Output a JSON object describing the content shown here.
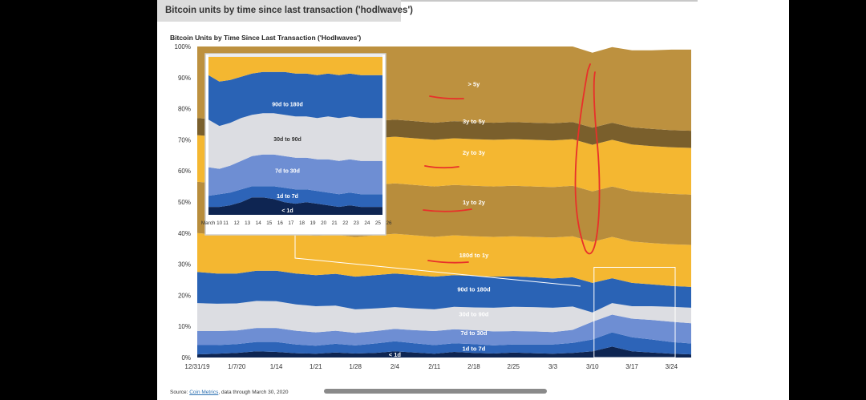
{
  "header": {
    "title": "Bitcoin units by time since last transaction ('hodlwaves')"
  },
  "chart_data": {
    "type": "area",
    "title": "Bitcoin Units by Time Since Last Transaction ('Hodlwaves')",
    "stacking": "percent",
    "ylim": [
      0,
      100
    ],
    "y_ticks": [
      "0%",
      "10%",
      "20%",
      "30%",
      "40%",
      "50%",
      "60%",
      "70%",
      "80%",
      "90%",
      "100%"
    ],
    "x_ticks": [
      "12/31/19",
      "1/7/20",
      "1/14",
      "1/21",
      "1/28",
      "2/4",
      "2/11",
      "2/18",
      "2/25",
      "3/3",
      "3/10",
      "3/17",
      "3/24"
    ],
    "grid": false,
    "x": [
      "12/31/19",
      "1/4",
      "1/7/20",
      "1/11",
      "1/14",
      "1/18",
      "1/21",
      "1/25",
      "1/28",
      "2/1",
      "2/4",
      "2/8",
      "2/11",
      "2/15",
      "2/18",
      "2/22",
      "2/25",
      "2/29",
      "3/3",
      "3/7",
      "3/10",
      "3/14",
      "3/17",
      "3/21",
      "3/24",
      "3/28"
    ],
    "series": [
      {
        "name": "< 1d",
        "color": "#0e2552",
        "label_x": "2/4",
        "label_y": 1,
        "values": [
          1.0,
          1.2,
          1.5,
          2.0,
          1.8,
          1.4,
          1.2,
          1.6,
          1.3,
          1.5,
          2.0,
          1.6,
          1.2,
          1.8,
          1.5,
          1.3,
          1.6,
          1.4,
          1.2,
          1.5,
          2.0,
          3.5,
          2.0,
          1.6,
          1.2,
          1.0
        ]
      },
      {
        "name": "1d to 7d",
        "color": "#2d64b8",
        "label_x": "2/18",
        "label_y": 3,
        "values": [
          3.0,
          2.8,
          2.8,
          3.0,
          3.2,
          2.8,
          2.6,
          2.8,
          2.6,
          3.0,
          3.2,
          3.0,
          2.8,
          2.8,
          2.8,
          2.6,
          2.6,
          2.8,
          3.0,
          3.2,
          3.8,
          4.6,
          4.5,
          4.2,
          3.8,
          3.5
        ]
      },
      {
        "name": "7d to 30d",
        "color": "#6e8ed3",
        "label_x": "2/18",
        "label_y": 8,
        "values": [
          4.5,
          4.5,
          4.4,
          4.5,
          4.5,
          4.4,
          4.3,
          4.2,
          4.0,
          4.0,
          4.0,
          4.2,
          4.5,
          4.5,
          4.5,
          4.5,
          4.3,
          4.2,
          4.0,
          4.2,
          5.7,
          5.7,
          6.0,
          6.3,
          6.5,
          6.5
        ]
      },
      {
        "name": "30d to 90d",
        "color": "#dcdde2",
        "label_x": "2/18",
        "label_y": 14,
        "values": [
          9.0,
          8.8,
          8.7,
          8.7,
          8.6,
          8.5,
          8.4,
          8.1,
          7.6,
          7.3,
          7.0,
          7.0,
          7.0,
          7.2,
          7.3,
          7.6,
          7.8,
          7.8,
          7.8,
          7.5,
          3.0,
          3.7,
          4.0,
          4.4,
          4.8,
          5.0
        ]
      },
      {
        "name": "90d to 180d",
        "color": "#2a63b5",
        "label_x": "2/18",
        "label_y": 22,
        "values": [
          10.0,
          9.7,
          9.6,
          9.7,
          9.8,
          9.9,
          10.0,
          10.2,
          10.5,
          10.7,
          10.8,
          10.7,
          10.5,
          10.2,
          10.1,
          10.0,
          9.8,
          9.6,
          9.4,
          9.4,
          9.5,
          8.0,
          7.5,
          7.0,
          6.7,
          6.7
        ]
      },
      {
        "name": "180d to 1y",
        "color": "#f4b731",
        "label_x": "2/18",
        "label_y": 33,
        "values": [
          12.5,
          12.5,
          12.5,
          12.6,
          12.6,
          12.6,
          12.6,
          12.6,
          12.7,
          12.8,
          12.8,
          12.8,
          12.8,
          12.8,
          12.8,
          12.8,
          12.9,
          13.0,
          13.2,
          13.2,
          13.2,
          13.3,
          13.3,
          13.3,
          13.4,
          13.5
        ]
      },
      {
        "name": "1y to 2y",
        "color": "#b88d3c",
        "label_x": "2/18",
        "label_y": 50,
        "values": [
          16.5,
          16.5,
          16.5,
          16.4,
          16.4,
          16.4,
          16.4,
          16.3,
          16.3,
          16.2,
          16.2,
          16.2,
          16.2,
          16.2,
          16.2,
          16.2,
          16.2,
          16.2,
          16.2,
          16.2,
          16.2,
          16.2,
          16.2,
          16.2,
          16.2,
          16.2
        ]
      },
      {
        "name": "2y to 3y",
        "color": "#f4b731",
        "label_x": "2/18",
        "label_y": 66,
        "values": [
          15.0,
          15.0,
          15.0,
          15.0,
          15.0,
          15.0,
          15.0,
          15.0,
          15.0,
          15.0,
          15.0,
          15.0,
          15.0,
          15.0,
          15.0,
          15.0,
          15.0,
          15.0,
          15.0,
          15.0,
          15.0,
          15.0,
          15.0,
          15.0,
          15.0,
          15.0
        ]
      },
      {
        "name": "3y to 5y",
        "color": "#7a5f2c",
        "label_x": "2/18",
        "label_y": 76,
        "values": [
          5.5,
          5.5,
          5.5,
          5.5,
          5.5,
          5.5,
          5.5,
          5.5,
          5.5,
          5.5,
          5.5,
          5.5,
          5.5,
          5.5,
          5.5,
          5.5,
          5.5,
          5.5,
          5.5,
          5.5,
          5.5,
          5.5,
          5.5,
          5.5,
          5.5,
          5.5
        ]
      },
      {
        "name": "> 5y",
        "color": "#bd913f",
        "label_x": "2/18",
        "label_y": 88,
        "values": [
          23.0,
          23.5,
          23.5,
          22.6,
          22.6,
          23.5,
          24.0,
          23.7,
          24.5,
          24.0,
          23.5,
          24.0,
          24.5,
          24.0,
          24.3,
          24.5,
          24.3,
          24.6,
          24.7,
          24.3,
          24.1,
          24.3,
          24.8,
          25.3,
          25.9,
          26.1
        ]
      }
    ],
    "inset": {
      "x_ticks": [
        "March 10",
        "11",
        "12",
        "13",
        "14",
        "15",
        "16",
        "17",
        "18",
        "19",
        "20",
        "21",
        "22",
        "23",
        "24",
        "25",
        "26"
      ],
      "series": [
        {
          "name": "< 1d",
          "color": "#0e2552",
          "label_x": "18",
          "label_y": 3,
          "values": [
            5,
            5,
            6,
            8,
            11,
            11,
            10,
            8,
            7,
            8,
            7,
            6,
            5,
            6,
            5,
            5,
            5
          ]
        },
        {
          "name": "1d to 7d",
          "color": "#2d64b8",
          "label_x": "18",
          "label_y": 12,
          "values": [
            7,
            8,
            8,
            8,
            7,
            7,
            8,
            9,
            9,
            8,
            8,
            8,
            8,
            8,
            8,
            8,
            8
          ]
        },
        {
          "name": "7d to 30d",
          "color": "#6e8ed3",
          "label_x": "18",
          "label_y": 28,
          "values": [
            18,
            16,
            17,
            18,
            19,
            20,
            20,
            20,
            20,
            20,
            20,
            21,
            21,
            21,
            21,
            21,
            21
          ]
        },
        {
          "name": "30d to 90d",
          "color": "#dcdde2",
          "label_x": "18",
          "label_y": 48,
          "values": [
            30,
            27,
            27,
            27,
            26,
            26,
            26,
            26,
            26,
            26,
            26,
            27,
            27,
            27,
            27,
            27,
            27
          ]
        },
        {
          "name": "90d to 180d",
          "color": "#2a63b5",
          "label_x": "18",
          "label_y": 70,
          "values": [
            28,
            28,
            27,
            26,
            26,
            26,
            26,
            27,
            27,
            27,
            27,
            27,
            27,
            27,
            27,
            27,
            27
          ]
        },
        {
          "name": "",
          "color": "#f4b731",
          "values": [
            12,
            16,
            15,
            13,
            11,
            10,
            10,
            10,
            11,
            11,
            12,
            11,
            12,
            11,
            12,
            12,
            12
          ]
        }
      ]
    }
  },
  "source": {
    "prefix": "Source: ",
    "link": "Coin Metrics",
    "suffix": ", data through March 30, 2020"
  }
}
